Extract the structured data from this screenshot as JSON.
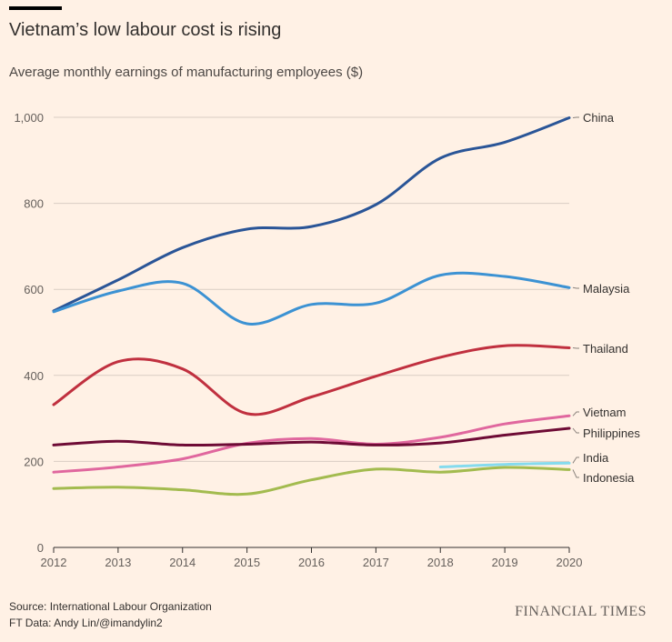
{
  "title": "Vietnam’s low labour cost is rising",
  "subtitle": "Average monthly earnings of manufacturing employees ($)",
  "source": "Source: International Labour Organization",
  "credit": "FT Data: Andy Lin/@imandylin2",
  "brand": "FINANCIAL TIMES",
  "chart_data": {
    "type": "line",
    "x": [
      2012,
      2013,
      2014,
      2015,
      2016,
      2017,
      2018,
      2019,
      2020
    ],
    "xlim": [
      2012,
      2020
    ],
    "ylim": [
      0,
      1000
    ],
    "yticks": [
      0,
      200,
      400,
      600,
      800,
      1000
    ],
    "ytick_labels": [
      "0",
      "200",
      "400",
      "600",
      "800",
      "1,000"
    ],
    "xtick_labels": [
      "2012",
      "2013",
      "2014",
      "2015",
      "2016",
      "2017",
      "2018",
      "2019",
      "2020"
    ],
    "grid": "horizontal",
    "legend": "direct labels at right end of lines",
    "series": [
      {
        "name": "China",
        "color": "#2a5597",
        "values": [
          550,
          622,
          697,
          740,
          746,
          797,
          905,
          942,
          999
        ]
      },
      {
        "name": "Malaysia",
        "color": "#3c92d3",
        "values": [
          548,
          596,
          614,
          520,
          565,
          568,
          633,
          630,
          604
        ]
      },
      {
        "name": "Thailand",
        "color": "#c0303f",
        "values": [
          332,
          432,
          415,
          311,
          350,
          398,
          442,
          469,
          464
        ]
      },
      {
        "name": "Vietnam",
        "color": "#e0679e",
        "values": [
          175,
          187,
          206,
          242,
          253,
          240,
          256,
          287,
          306
        ]
      },
      {
        "name": "Philippines",
        "color": "#6e0b35",
        "values": [
          238,
          247,
          238,
          240,
          245,
          238,
          243,
          261,
          277
        ]
      },
      {
        "name": "India",
        "color": "#85dbee",
        "values": [
          null,
          null,
          null,
          null,
          null,
          null,
          187,
          193,
          196
        ]
      },
      {
        "name": "Indonesia",
        "color": "#a3bb4f",
        "values": [
          137,
          140,
          134,
          124,
          157,
          182,
          175,
          186,
          181
        ]
      }
    ]
  }
}
